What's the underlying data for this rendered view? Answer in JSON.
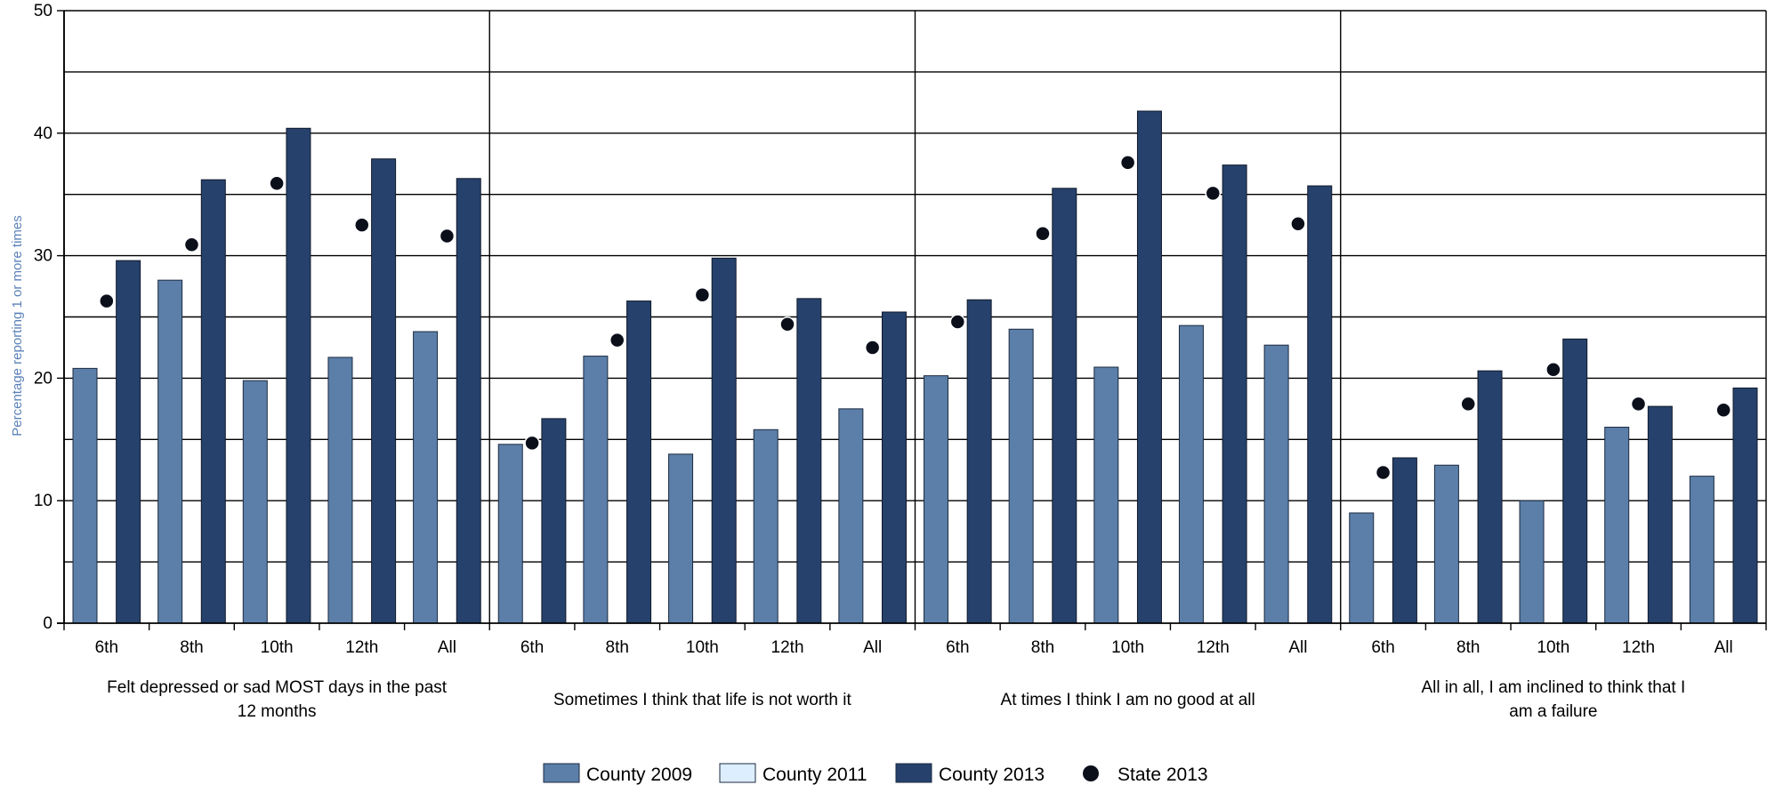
{
  "chart_data": {
    "type": "bar",
    "ylabel": "Percentage reporting 1 or more times",
    "ylim": [
      0,
      50
    ],
    "yticks": [
      0,
      10,
      20,
      30,
      40,
      50
    ],
    "grid": true,
    "legend_position": "bottom-center",
    "grades": [
      "6th",
      "8th",
      "10th",
      "12th",
      "All"
    ],
    "groups": [
      {
        "label": "Felt depressed or sad MOST days in the past 12 months",
        "label_lines": [
          "Felt depressed or sad MOST days in the past",
          "12 months"
        ],
        "county_2009": [
          20.8,
          28.0,
          19.8,
          21.7,
          23.8
        ],
        "county_2013": [
          29.6,
          36.2,
          40.4,
          37.9,
          36.3
        ],
        "state_2013": [
          26.3,
          30.9,
          35.9,
          32.5,
          31.6
        ]
      },
      {
        "label": "Sometimes I think that life is not worth it",
        "label_lines": [
          "Sometimes I think that life is not worth it"
        ],
        "county_2009": [
          14.6,
          21.8,
          13.8,
          15.8,
          17.5
        ],
        "county_2013": [
          16.7,
          26.3,
          29.8,
          26.5,
          25.4
        ],
        "state_2013": [
          14.7,
          23.1,
          26.8,
          24.4,
          22.5
        ]
      },
      {
        "label": "At times I think I am no good at all",
        "label_lines": [
          "At times I think I am no good at all"
        ],
        "county_2009": [
          20.2,
          24.0,
          20.9,
          24.3,
          22.7
        ],
        "county_2013": [
          26.4,
          35.5,
          41.8,
          37.4,
          35.7
        ],
        "state_2013": [
          24.6,
          31.8,
          37.6,
          35.1,
          32.6
        ]
      },
      {
        "label": "All in all, I am inclined to think that I am a failure",
        "label_lines": [
          "All in all, I am inclined to think that I",
          "am a failure"
        ],
        "county_2009": [
          9.0,
          12.9,
          10.0,
          16.0,
          12.0
        ],
        "county_2013": [
          13.5,
          20.6,
          23.2,
          17.7,
          19.2
        ],
        "state_2013": [
          12.3,
          17.9,
          20.7,
          17.9,
          17.4
        ]
      }
    ],
    "series": [
      {
        "name": "County 2009",
        "color": "#5b7fa8"
      },
      {
        "name": "County 2011",
        "color": "#ddeeff"
      },
      {
        "name": "County 2013",
        "color": "#26416b"
      },
      {
        "name": "State 2013",
        "color": "#0a0f1a"
      }
    ]
  }
}
